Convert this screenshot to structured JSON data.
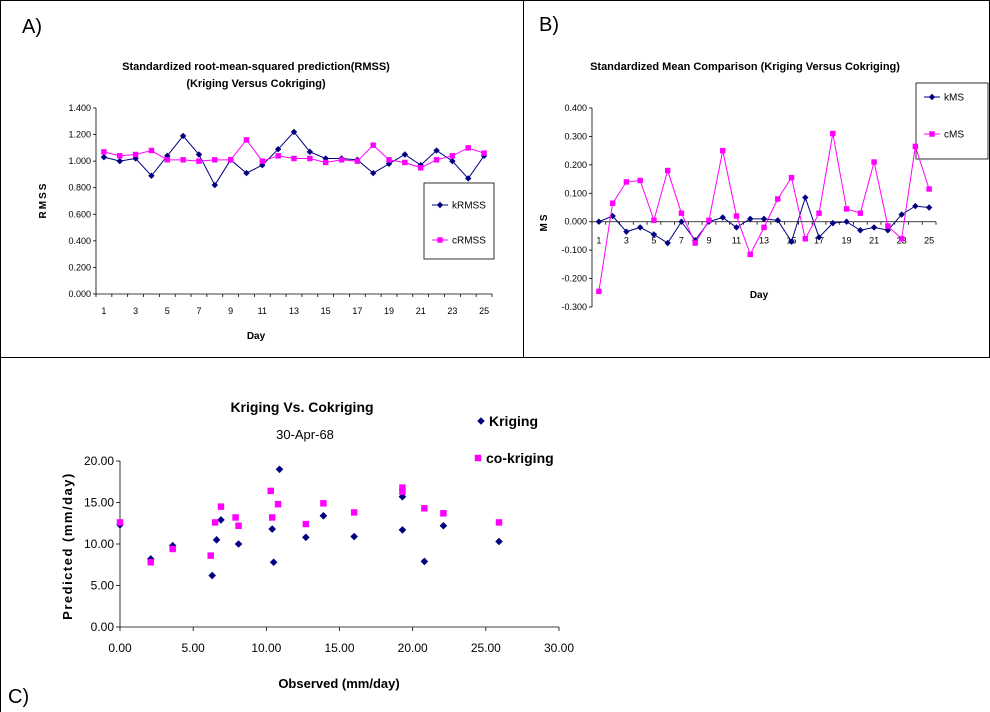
{
  "panels": {
    "a_label": "A)",
    "b_label": "B)",
    "c_label": "C)"
  },
  "colors": {
    "blue": "#000080",
    "magenta": "#ff00ff",
    "border": "#000000"
  },
  "chart_data": [
    {
      "type": "line",
      "title": "Standardized root-mean-squared prediction(RMSS)",
      "subtitle": "(Kriging Versus Cokriging)",
      "xlabel": "Day",
      "ylabel": "RMSS",
      "x": [
        1,
        2,
        3,
        4,
        5,
        6,
        7,
        8,
        9,
        10,
        11,
        12,
        13,
        14,
        15,
        16,
        17,
        18,
        19,
        20,
        21,
        22,
        23,
        24,
        25
      ],
      "x_ticks": [
        "1",
        "3",
        "5",
        "7",
        "9",
        "11",
        "13",
        "15",
        "17",
        "19",
        "21",
        "23",
        "25"
      ],
      "y_ticks": [
        "0.000",
        "0.200",
        "0.400",
        "0.600",
        "0.800",
        "1.000",
        "1.200",
        "1.400"
      ],
      "ylim": [
        0,
        1.4
      ],
      "legend": "right",
      "series": [
        {
          "name": "kRMSS",
          "marker": "diamond",
          "color": "#000080",
          "values": [
            1.03,
            1.0,
            1.02,
            0.89,
            1.04,
            1.19,
            1.05,
            0.82,
            1.01,
            0.91,
            0.97,
            1.09,
            1.22,
            1.07,
            1.02,
            1.02,
            1.01,
            0.91,
            0.98,
            1.05,
            0.97,
            1.08,
            1.0,
            0.87,
            1.04
          ]
        },
        {
          "name": "cRMSS",
          "marker": "square",
          "color": "#ff00ff",
          "values": [
            1.07,
            1.04,
            1.05,
            1.08,
            1.01,
            1.01,
            1.0,
            1.01,
            1.01,
            1.16,
            1.0,
            1.04,
            1.02,
            1.02,
            0.99,
            1.01,
            1.0,
            1.12,
            1.01,
            0.99,
            0.95,
            1.01,
            1.04,
            1.1,
            1.06
          ]
        }
      ]
    },
    {
      "type": "line",
      "title": "Standardized Mean Comparison (Kriging Versus Cokriging)",
      "xlabel": "Day",
      "ylabel": "MS",
      "x": [
        1,
        2,
        3,
        4,
        5,
        6,
        7,
        8,
        9,
        10,
        11,
        12,
        13,
        14,
        15,
        16,
        17,
        18,
        19,
        20,
        21,
        22,
        23,
        24,
        25
      ],
      "x_ticks": [
        "1",
        "3",
        "5",
        "7",
        "9",
        "11",
        "13",
        "15",
        "17",
        "19",
        "21",
        "23",
        "25"
      ],
      "y_ticks": [
        "-0.300",
        "-0.200",
        "-0.100",
        "0.000",
        "0.100",
        "0.200",
        "0.300",
        "0.400"
      ],
      "ylim": [
        -0.3,
        0.4
      ],
      "legend": "right",
      "series": [
        {
          "name": "kMS",
          "marker": "diamond",
          "color": "#000080",
          "values": [
            0.0,
            0.02,
            -0.035,
            -0.02,
            -0.045,
            -0.075,
            0.0,
            -0.065,
            0.0,
            0.015,
            -0.02,
            0.01,
            0.01,
            0.005,
            -0.07,
            0.085,
            -0.055,
            -0.005,
            0.0,
            -0.03,
            -0.02,
            -0.03,
            0.025,
            0.055,
            0.05
          ]
        },
        {
          "name": "cMS",
          "marker": "square",
          "color": "#ff00ff",
          "values": [
            -0.245,
            0.065,
            0.14,
            0.145,
            0.005,
            0.18,
            0.03,
            -0.075,
            0.005,
            0.25,
            0.02,
            -0.115,
            -0.02,
            0.08,
            0.155,
            -0.06,
            0.03,
            0.31,
            0.045,
            0.03,
            0.21,
            -0.015,
            -0.06,
            0.265,
            0.115
          ]
        }
      ]
    },
    {
      "type": "scatter",
      "title": "Kriging Vs. Cokriging",
      "subtitle": "30-Apr-68",
      "xlabel": "Observed (mm/day)",
      "ylabel": "Predicted (mm/day)",
      "x_ticks": [
        "0.00",
        "5.00",
        "10.00",
        "15.00",
        "20.00",
        "25.00",
        "30.00"
      ],
      "y_ticks": [
        "0.00",
        "5.00",
        "10.00",
        "15.00",
        "20.00"
      ],
      "xlim": [
        0,
        30
      ],
      "ylim": [
        0,
        20
      ],
      "legend": "right",
      "series": [
        {
          "name": "Kriging",
          "marker": "diamond",
          "color": "#000080",
          "points": [
            [
              0,
              12.3
            ],
            [
              2.1,
              8.2
            ],
            [
              3.6,
              9.8
            ],
            [
              6.3,
              6.2
            ],
            [
              6.6,
              10.5
            ],
            [
              6.9,
              12.9
            ],
            [
              8.1,
              10.0
            ],
            [
              10.4,
              11.8
            ],
            [
              10.5,
              7.8
            ],
            [
              10.9,
              19.0
            ],
            [
              12.7,
              10.8
            ],
            [
              13.9,
              13.4
            ],
            [
              16.0,
              10.9
            ],
            [
              19.3,
              15.7
            ],
            [
              19.3,
              11.7
            ],
            [
              20.8,
              7.9
            ],
            [
              22.1,
              12.2
            ],
            [
              25.9,
              10.3
            ]
          ]
        },
        {
          "name": "co-kriging",
          "marker": "square",
          "color": "#ff00ff",
          "points": [
            [
              0,
              12.6
            ],
            [
              2.1,
              7.8
            ],
            [
              3.6,
              9.4
            ],
            [
              6.2,
              8.6
            ],
            [
              6.5,
              12.6
            ],
            [
              6.9,
              14.5
            ],
            [
              7.9,
              13.2
            ],
            [
              8.1,
              12.2
            ],
            [
              10.3,
              16.4
            ],
            [
              10.4,
              13.2
            ],
            [
              10.8,
              14.8
            ],
            [
              12.7,
              12.4
            ],
            [
              13.9,
              14.9
            ],
            [
              16.0,
              13.8
            ],
            [
              19.3,
              16.8
            ],
            [
              19.3,
              16.3
            ],
            [
              20.8,
              14.3
            ],
            [
              22.1,
              13.7
            ],
            [
              25.9,
              12.6
            ]
          ]
        }
      ]
    }
  ]
}
